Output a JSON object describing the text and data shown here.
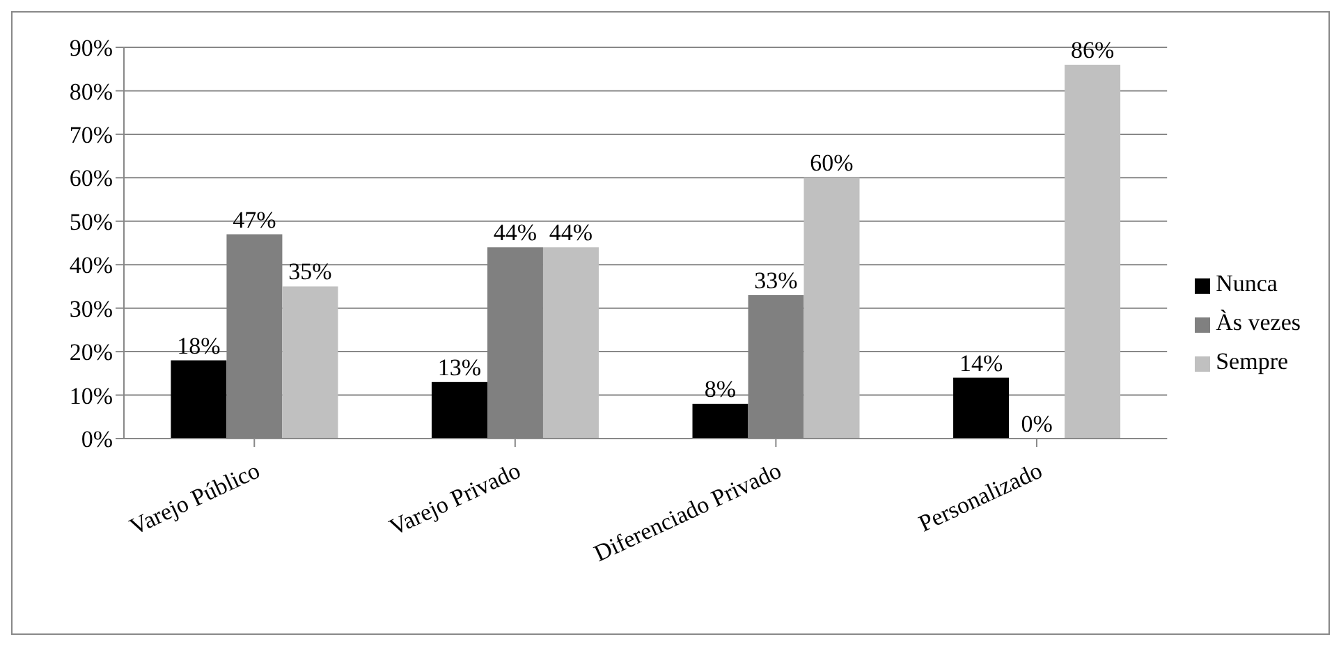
{
  "chart_data": {
    "type": "bar",
    "categories": [
      "Varejo Público",
      "Varejo Privado",
      "Diferenciado Privado",
      "Personalizado"
    ],
    "series": [
      {
        "name": "Nunca",
        "color": "#000000",
        "values": [
          18,
          13,
          8,
          14
        ],
        "value_labels": [
          "18%",
          "13%",
          "8%",
          "14%"
        ]
      },
      {
        "name": "Às vezes",
        "color": "#808080",
        "values": [
          47,
          44,
          33,
          0
        ],
        "value_labels": [
          "47%",
          "44%",
          "33%",
          "0%"
        ]
      },
      {
        "name": "Sempre",
        "color": "#c0c0c0",
        "values": [
          35,
          44,
          60,
          86
        ],
        "value_labels": [
          "35%",
          "44%",
          "60%",
          "86%"
        ]
      }
    ],
    "ylim": [
      0,
      90
    ],
    "yticks": [
      {
        "value": 0,
        "label": "0%"
      },
      {
        "value": 10,
        "label": "10%"
      },
      {
        "value": 20,
        "label": "20%"
      },
      {
        "value": 30,
        "label": "30%"
      },
      {
        "value": 40,
        "label": "40%"
      },
      {
        "value": 50,
        "label": "50%"
      },
      {
        "value": 60,
        "label": "60%"
      },
      {
        "value": 70,
        "label": "70%"
      },
      {
        "value": 80,
        "label": "80%"
      },
      {
        "value": 90,
        "label": "90%"
      }
    ],
    "grid": "y",
    "legend": "right"
  }
}
